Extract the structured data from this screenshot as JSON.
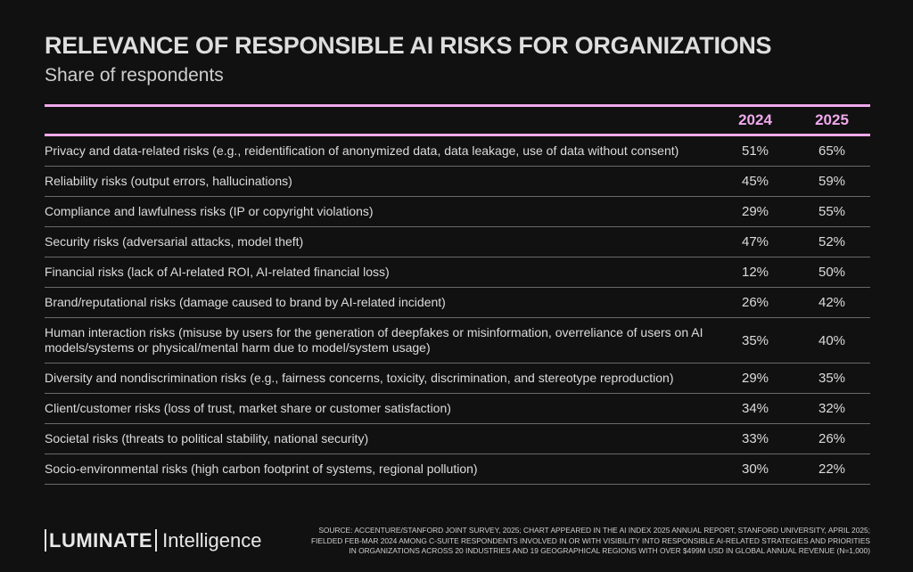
{
  "header": {
    "title": "RELEVANCE OF RESPONSIBLE AI RISKS FOR ORGANIZATIONS",
    "subtitle": "Share of respondents"
  },
  "table": {
    "columns": [
      "2024",
      "2025"
    ],
    "rows": [
      [
        "Privacy and data-related risks (e.g., reidentification of anonymized data, data leakage, use of data without consent)",
        "51%",
        "65%"
      ],
      [
        "Reliability risks (output errors, hallucinations)",
        "45%",
        "59%"
      ],
      [
        "Compliance and lawfulness risks (IP or copyright violations)",
        "29%",
        "55%"
      ],
      [
        "Security risks (adversarial attacks, model theft)",
        "47%",
        "52%"
      ],
      [
        "Financial risks (lack of AI-related ROI, AI-related financial loss)",
        "12%",
        "50%"
      ],
      [
        "Brand/reputational risks (damage caused to brand by AI-related incident)",
        "26%",
        "42%"
      ],
      [
        "Human interaction risks (misuse by users for the generation of deepfakes or misinformation, overreliance of users on AI models/systems or physical/mental harm due to model/system usage)",
        "35%",
        "40%"
      ],
      [
        "Diversity and nondiscrimination risks (e.g., fairness concerns, toxicity, discrimination, and stereotype reproduction)",
        "29%",
        "35%"
      ],
      [
        "Client/customer risks (loss of trust, market share or customer satisfaction)",
        "34%",
        "32%"
      ],
      [
        "Societal risks (threats to political stability, national security)",
        "33%",
        "26%"
      ],
      [
        "Socio-environmental risks (high carbon footprint of systems, regional pollution)",
        "30%",
        "22%"
      ]
    ]
  },
  "footer": {
    "logo": {
      "brand": "LUMINATE",
      "product": "Intelligence"
    },
    "source": [
      "SOURCE: ACCENTURE/STANFORD JOINT SURVEY, 2025; CHART APPEARED IN THE AI INDEX 2025 ANNUAL REPORT, STANFORD UNIVERSITY, APRIL 2025;",
      "FIELDED FEB-MAR 2024 AMONG C-SUITE RESPONDENTS INVOLVED IN OR WITH VISIBILITY INTO RESPONSIBLE AI-RELATED STRATEGIES AND PRIORITIES",
      "IN ORGANIZATIONS ACROSS 20 INDUSTRIES AND 19 GEOGRAPHICAL REGIONS WITH OVER $499M USD IN GLOBAL ANNUAL REVENUE (N=1,000)"
    ]
  }
}
